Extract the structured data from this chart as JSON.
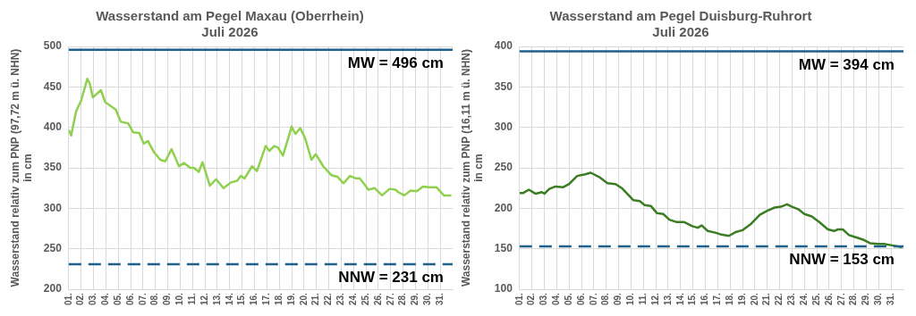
{
  "chart_data": [
    {
      "type": "line",
      "title": "Wasserstand am Pegel Maxau (Oberrhein)",
      "subtitle": "Juli 2026",
      "ylabel": "Wasserstand relativ zum PNP (97,72 m ü. NHN)\nin cm",
      "x": [
        1,
        1.2,
        1.6,
        2.0,
        2.5,
        2.7,
        2.95,
        3.6,
        3.95,
        4.8,
        5.2,
        5.8,
        6.2,
        6.7,
        7.05,
        7.4,
        7.9,
        8.4,
        8.8,
        9.3,
        9.65,
        9.9,
        10.3,
        10.8,
        11.1,
        11.5,
        11.8,
        12.4,
        12.9,
        13.5,
        14.1,
        14.6,
        14.9,
        15.2,
        15.8,
        16.2,
        16.9,
        17.2,
        17.6,
        17.9,
        18.3,
        19.0,
        19.3,
        19.7,
        20.1,
        20.6,
        20.95,
        21.55,
        22.2,
        22.7,
        23.2,
        23.7,
        24.2,
        24.5,
        25.2,
        25.7,
        26.3,
        26.9,
        27.4,
        27.6,
        28.1,
        28.6,
        29.1,
        29.6,
        30.1,
        30.7,
        31.3,
        31.9
      ],
      "series": [
        {
          "color": "#8fd14f",
          "values": [
            397,
            390,
            420,
            433,
            460,
            454,
            437,
            446,
            431,
            422,
            407,
            405,
            394,
            393,
            380,
            383,
            369,
            360,
            358,
            373,
            361,
            352,
            356,
            350,
            350,
            345,
            357,
            328,
            336,
            325,
            332,
            334,
            340,
            337,
            352,
            346,
            377,
            371,
            377,
            375,
            365,
            401,
            392,
            399,
            386,
            360,
            367,
            352,
            341,
            339,
            331,
            340,
            337,
            337,
            323,
            325,
            316,
            324,
            323,
            320,
            316,
            322,
            321,
            327,
            326,
            326,
            316,
            316
          ]
        }
      ],
      "xlim": [
        1,
        32
      ],
      "xticks": [
        {
          "value": 1,
          "label": "01."
        },
        {
          "value": 2,
          "label": "02."
        },
        {
          "value": 3,
          "label": "03."
        },
        {
          "value": 4,
          "label": "04."
        },
        {
          "value": 5,
          "label": "05."
        },
        {
          "value": 6,
          "label": "06."
        },
        {
          "value": 7,
          "label": "07."
        },
        {
          "value": 8,
          "label": "08."
        },
        {
          "value": 9,
          "label": "09."
        },
        {
          "value": 10,
          "label": "10."
        },
        {
          "value": 11,
          "label": "11."
        },
        {
          "value": 12,
          "label": "12."
        },
        {
          "value": 13,
          "label": "13."
        },
        {
          "value": 14,
          "label": "14."
        },
        {
          "value": 15,
          "label": "15."
        },
        {
          "value": 16,
          "label": "16."
        },
        {
          "value": 17,
          "label": "17."
        },
        {
          "value": 18,
          "label": "18."
        },
        {
          "value": 19,
          "label": "19."
        },
        {
          "value": 20,
          "label": "20."
        },
        {
          "value": 21,
          "label": "21."
        },
        {
          "value": 22,
          "label": "22."
        },
        {
          "value": 23,
          "label": "23."
        },
        {
          "value": 24,
          "label": "24."
        },
        {
          "value": 25,
          "label": "25."
        },
        {
          "value": 26,
          "label": "26."
        },
        {
          "value": 27,
          "label": "27."
        },
        {
          "value": 28,
          "label": "28."
        },
        {
          "value": 29,
          "label": "29."
        },
        {
          "value": 30,
          "label": "30."
        },
        {
          "value": 31,
          "label": "31."
        }
      ],
      "ylim": [
        200,
        500
      ],
      "yticks": [
        200,
        250,
        300,
        350,
        400,
        450,
        500
      ],
      "grid": true,
      "legend": false,
      "marker": "none",
      "line_style": "solid",
      "ref_lines": [
        {
          "axis": "y",
          "value": 496,
          "label": "MW = 496 cm",
          "color": "#1f618d",
          "line_style": "solid"
        },
        {
          "axis": "y",
          "value": 231,
          "label": "NNW = 231 cm",
          "color": "#1f618d",
          "line_style": "dashed"
        }
      ]
    },
    {
      "type": "line",
      "title": "Wasserstand am Pegel Duisburg-Ruhrort",
      "subtitle": "Juli 2026",
      "ylabel": "Wasserstand relativ zum PNP (16,11 m ü. NHN)\nin cm",
      "x": [
        1,
        1.3,
        1.75,
        2.3,
        2.8,
        3.0,
        3.4,
        3.9,
        4.5,
        5.0,
        5.65,
        6.3,
        6.75,
        7.5,
        8.1,
        8.75,
        9.25,
        9.7,
        10.2,
        10.7,
        11.1,
        11.6,
        12.1,
        12.6,
        13.1,
        13.7,
        14.3,
        14.95,
        15.4,
        15.7,
        16.2,
        16.8,
        17.2,
        17.9,
        18.5,
        19.0,
        19.7,
        20.4,
        21.0,
        21.6,
        22.1,
        22.6,
        23.0,
        23.5,
        24.0,
        24.6,
        25.2,
        25.9,
        26.4,
        26.7,
        27.1,
        27.6,
        28.2,
        28.8,
        29.3,
        29.9,
        30.4,
        31.2,
        31.9
      ],
      "series": [
        {
          "color": "#3a7d22",
          "values": [
            219,
            219,
            223,
            218,
            220,
            218,
            224,
            227,
            226,
            230,
            240,
            242,
            244,
            238,
            231,
            230,
            225,
            218,
            210,
            209,
            204,
            203,
            194,
            193,
            186,
            183,
            183,
            178,
            176,
            179,
            172,
            170,
            168,
            166,
            171,
            173,
            181,
            192,
            197,
            201,
            202,
            205,
            202,
            199,
            193,
            190,
            183,
            174,
            172,
            174,
            174,
            167,
            164,
            161,
            157,
            156,
            156,
            154,
            152
          ]
        }
      ],
      "xlim": [
        1,
        32
      ],
      "xticks": [
        {
          "value": 1,
          "label": "01."
        },
        {
          "value": 2,
          "label": "02."
        },
        {
          "value": 3,
          "label": "03."
        },
        {
          "value": 4,
          "label": "04."
        },
        {
          "value": 5,
          "label": "05."
        },
        {
          "value": 6,
          "label": "06."
        },
        {
          "value": 7,
          "label": "07."
        },
        {
          "value": 8,
          "label": "08."
        },
        {
          "value": 9,
          "label": "09."
        },
        {
          "value": 10,
          "label": "10."
        },
        {
          "value": 11,
          "label": "11."
        },
        {
          "value": 12,
          "label": "12."
        },
        {
          "value": 13,
          "label": "13."
        },
        {
          "value": 14,
          "label": "14."
        },
        {
          "value": 15,
          "label": "15."
        },
        {
          "value": 16,
          "label": "16."
        },
        {
          "value": 17,
          "label": "17."
        },
        {
          "value": 18,
          "label": "18."
        },
        {
          "value": 19,
          "label": "19."
        },
        {
          "value": 20,
          "label": "20."
        },
        {
          "value": 21,
          "label": "21."
        },
        {
          "value": 22,
          "label": "22."
        },
        {
          "value": 23,
          "label": "23."
        },
        {
          "value": 24,
          "label": "24."
        },
        {
          "value": 25,
          "label": "25."
        },
        {
          "value": 26,
          "label": "26."
        },
        {
          "value": 27,
          "label": "27."
        },
        {
          "value": 28,
          "label": "28."
        },
        {
          "value": 29,
          "label": "29."
        },
        {
          "value": 30,
          "label": "30."
        },
        {
          "value": 31,
          "label": "31."
        }
      ],
      "ylim": [
        100,
        400
      ],
      "yticks": [
        100,
        150,
        200,
        250,
        300,
        350,
        400
      ],
      "grid": true,
      "legend": false,
      "marker": "none",
      "line_style": "solid",
      "ref_lines": [
        {
          "axis": "y",
          "value": 394,
          "label": "MW = 394 cm",
          "color": "#1f618d",
          "line_style": "solid"
        },
        {
          "axis": "y",
          "value": 153,
          "label": "NNW = 153 cm",
          "color": "#1f618d",
          "line_style": "dashed"
        }
      ]
    }
  ]
}
